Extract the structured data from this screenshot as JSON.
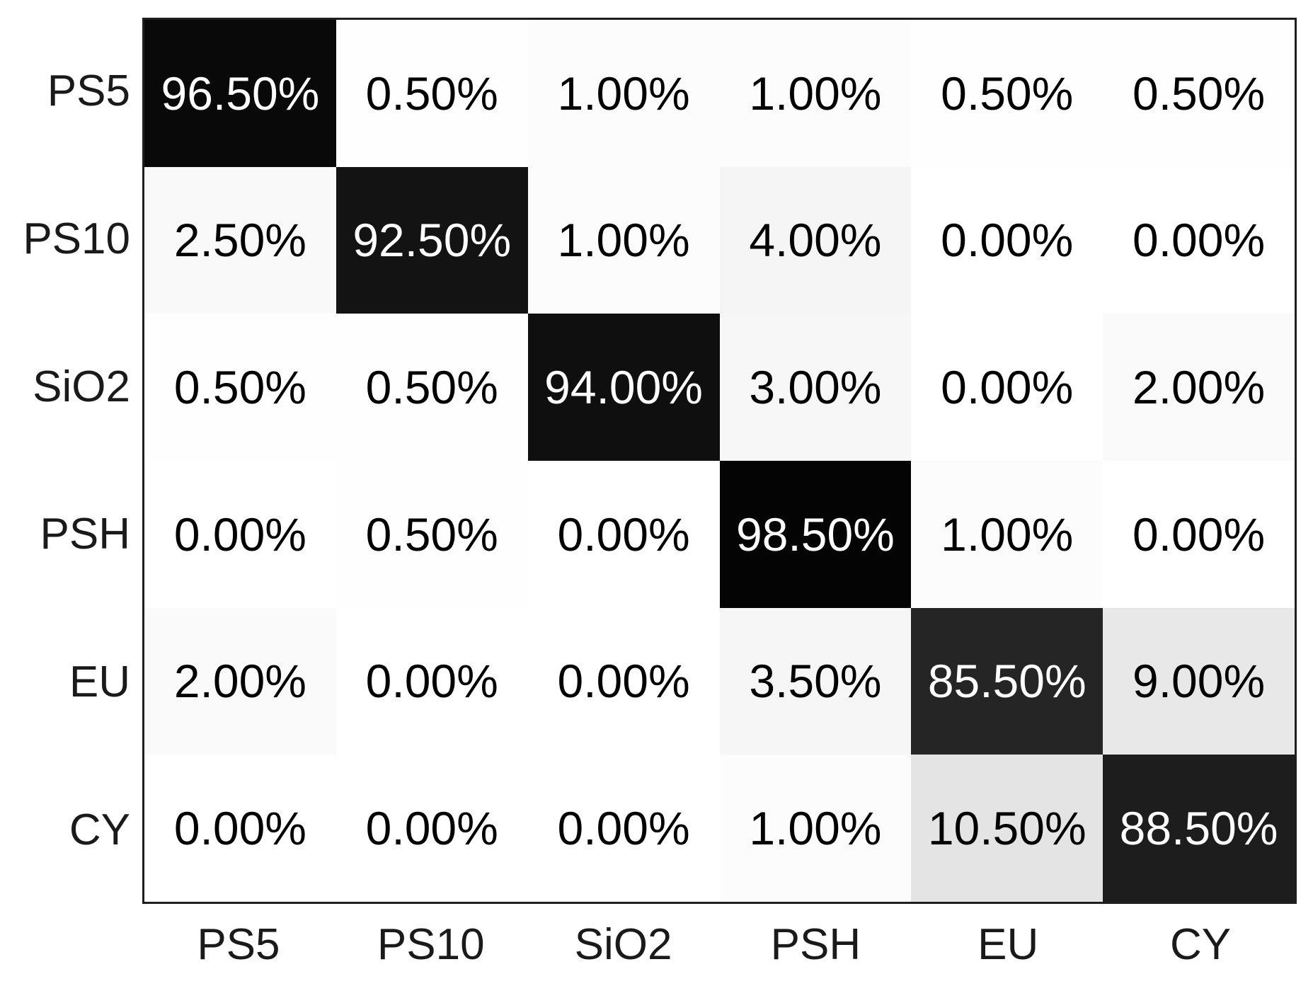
{
  "figure": {
    "background": "#ffffff",
    "frame_color": "#1f1f1f",
    "axis_label_color": "#1a1a1a",
    "cell_text_dark": "#000000",
    "cell_text_light": "#ffffff",
    "light_text_threshold_percent": 50
  },
  "chart_data": {
    "type": "heatmap",
    "title": "",
    "xlabel": "",
    "ylabel": "",
    "rows": [
      "PS5",
      "PS10",
      "SiO2",
      "PSH",
      "EU",
      "CY"
    ],
    "columns": [
      "PS5",
      "PS10",
      "SiO2",
      "PSH",
      "EU",
      "CY"
    ],
    "values_percent": [
      [
        96.5,
        0.5,
        1.0,
        1.0,
        0.5,
        0.5
      ],
      [
        2.5,
        92.5,
        1.0,
        4.0,
        0.0,
        0.0
      ],
      [
        0.5,
        0.5,
        94.0,
        3.0,
        0.0,
        2.0
      ],
      [
        0.0,
        0.5,
        0.0,
        98.5,
        1.0,
        0.0
      ],
      [
        2.0,
        0.0,
        0.0,
        3.5,
        85.5,
        9.0
      ],
      [
        0.0,
        0.0,
        0.0,
        1.0,
        10.5,
        88.5
      ]
    ],
    "cell_labels": [
      [
        "96.50%",
        "0.50%",
        "1.00%",
        "1.00%",
        "0.50%",
        "0.50%"
      ],
      [
        "2.50%",
        "92.50%",
        "1.00%",
        "4.00%",
        "0.00%",
        "0.00%"
      ],
      [
        "0.50%",
        "0.50%",
        "94.00%",
        "3.00%",
        "0.00%",
        "2.00%"
      ],
      [
        "0.00%",
        "0.50%",
        "0.00%",
        "98.50%",
        "1.00%",
        "0.00%"
      ],
      [
        "2.00%",
        "0.00%",
        "0.00%",
        "3.50%",
        "85.50%",
        "9.00%"
      ],
      [
        "0.00%",
        "0.00%",
        "0.00%",
        "1.00%",
        "10.50%",
        "88.50%"
      ]
    ],
    "colormap": {
      "type": "linear-grayscale",
      "min_value": 0,
      "max_value": 100,
      "min_color": "#ffffff",
      "max_color": "#000000"
    },
    "grid": false,
    "legend": false
  }
}
